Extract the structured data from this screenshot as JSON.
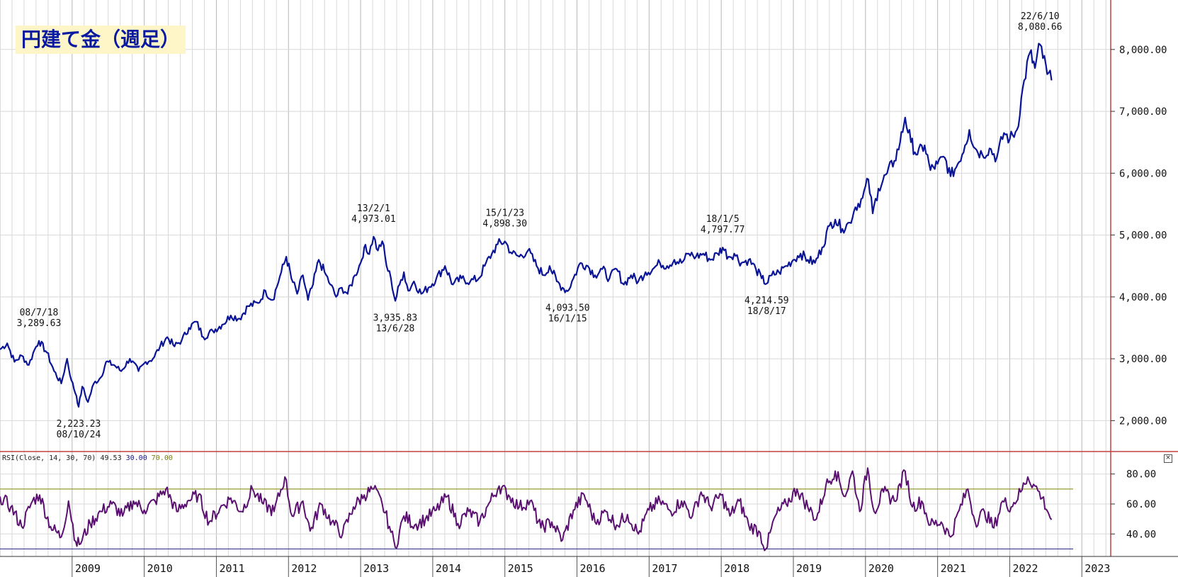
{
  "title": "円建て金（週足）",
  "colors": {
    "price_line": "#0a1496",
    "rsi_line": "#5a1070",
    "grid": "#d8d8d8",
    "separator": "#c04040",
    "rsi_upper": "#9a9a30",
    "rsi_lower": "#3a3a90"
  },
  "chart_data": [
    {
      "type": "line",
      "name": "price",
      "ylim": [
        1500,
        8800
      ],
      "yticks": [
        "2,000.00",
        "3,000.00",
        "4,000.00",
        "5,000.00",
        "6,000.00",
        "7,000.00",
        "8,000.00"
      ],
      "ytick_values": [
        2000,
        3000,
        4000,
        5000,
        6000,
        7000,
        8000
      ],
      "xlabels": [
        "2009",
        "2010",
        "2011",
        "2012",
        "2013",
        "2014",
        "2015",
        "2016",
        "2017",
        "2018",
        "2019",
        "2020",
        "2021",
        "2022",
        "2023"
      ],
      "x_start": 2008.0,
      "x_end": 2023.4,
      "grid": true,
      "anchors": [
        [
          2008.0,
          3150
        ],
        [
          2008.1,
          3250
        ],
        [
          2008.2,
          2950
        ],
        [
          2008.3,
          3050
        ],
        [
          2008.4,
          2900
        ],
        [
          2008.48,
          3150
        ],
        [
          2008.54,
          3289.63
        ],
        [
          2008.65,
          3100
        ],
        [
          2008.75,
          2800
        ],
        [
          2008.85,
          2600
        ],
        [
          2008.93,
          3000
        ],
        [
          2008.99,
          2650
        ],
        [
          2009.06,
          2400
        ],
        [
          2009.09,
          2223.23
        ],
        [
          2009.14,
          2550
        ],
        [
          2009.22,
          2300
        ],
        [
          2009.3,
          2600
        ],
        [
          2009.4,
          2700
        ],
        [
          2009.47,
          2950
        ],
        [
          2009.58,
          2900
        ],
        [
          2009.68,
          2800
        ],
        [
          2009.8,
          3000
        ],
        [
          2009.92,
          2800
        ],
        [
          2010.02,
          2950
        ],
        [
          2010.12,
          3000
        ],
        [
          2010.22,
          3200
        ],
        [
          2010.32,
          3350
        ],
        [
          2010.42,
          3200
        ],
        [
          2010.52,
          3300
        ],
        [
          2010.62,
          3500
        ],
        [
          2010.72,
          3600
        ],
        [
          2010.82,
          3350
        ],
        [
          2010.95,
          3450
        ],
        [
          2011.08,
          3550
        ],
        [
          2011.2,
          3700
        ],
        [
          2011.32,
          3650
        ],
        [
          2011.44,
          3850
        ],
        [
          2011.58,
          3900
        ],
        [
          2011.68,
          4100
        ],
        [
          2011.78,
          3950
        ],
        [
          2011.9,
          4400
        ],
        [
          2011.97,
          4650
        ],
        [
          2012.04,
          4300
        ],
        [
          2012.12,
          4050
        ],
        [
          2012.2,
          4350
        ],
        [
          2012.27,
          3950
        ],
        [
          2012.34,
          4200
        ],
        [
          2012.42,
          4600
        ],
        [
          2012.5,
          4400
        ],
        [
          2012.58,
          4200
        ],
        [
          2012.66,
          4000
        ],
        [
          2012.74,
          4150
        ],
        [
          2012.82,
          4050
        ],
        [
          2012.92,
          4350
        ],
        [
          2013.0,
          4550
        ],
        [
          2013.05,
          4800
        ],
        [
          2013.1,
          4700
        ],
        [
          2013.18,
          4973.01
        ],
        [
          2013.24,
          4750
        ],
        [
          2013.3,
          4900
        ],
        [
          2013.36,
          4500
        ],
        [
          2013.42,
          4300
        ],
        [
          2013.48,
          3935.83
        ],
        [
          2013.54,
          4200
        ],
        [
          2013.6,
          4400
        ],
        [
          2013.66,
          4100
        ],
        [
          2013.74,
          4250
        ],
        [
          2013.84,
          4050
        ],
        [
          2013.94,
          4150
        ],
        [
          2014.05,
          4300
        ],
        [
          2014.17,
          4500
        ],
        [
          2014.28,
          4200
        ],
        [
          2014.4,
          4300
        ],
        [
          2014.52,
          4250
        ],
        [
          2014.64,
          4300
        ],
        [
          2014.72,
          4500
        ],
        [
          2014.82,
          4700
        ],
        [
          2014.9,
          4850
        ],
        [
          2015.0,
          4898.3
        ],
        [
          2015.1,
          4700
        ],
        [
          2015.2,
          4650
        ],
        [
          2015.32,
          4750
        ],
        [
          2015.44,
          4500
        ],
        [
          2015.54,
          4350
        ],
        [
          2015.62,
          4500
        ],
        [
          2015.72,
          4250
        ],
        [
          2015.8,
          4150
        ],
        [
          2015.87,
          4093.5
        ],
        [
          2015.95,
          4300
        ],
        [
          2016.05,
          4550
        ],
        [
          2016.15,
          4500
        ],
        [
          2016.25,
          4350
        ],
        [
          2016.35,
          4450
        ],
        [
          2016.45,
          4300
        ],
        [
          2016.55,
          4450
        ],
        [
          2016.65,
          4200
        ],
        [
          2016.75,
          4350
        ],
        [
          2016.85,
          4250
        ],
        [
          2016.95,
          4400
        ],
        [
          2017.05,
          4450
        ],
        [
          2017.15,
          4550
        ],
        [
          2017.25,
          4500
        ],
        [
          2017.35,
          4600
        ],
        [
          2017.45,
          4550
        ],
        [
          2017.55,
          4700
        ],
        [
          2017.65,
          4650
        ],
        [
          2017.75,
          4700
        ],
        [
          2017.85,
          4600
        ],
        [
          2017.95,
          4700
        ],
        [
          2018.02,
          4797.77
        ],
        [
          2018.1,
          4650
        ],
        [
          2018.18,
          4700
        ],
        [
          2018.28,
          4550
        ],
        [
          2018.38,
          4600
        ],
        [
          2018.48,
          4450
        ],
        [
          2018.56,
          4300
        ],
        [
          2018.63,
          4214.59
        ],
        [
          2018.7,
          4350
        ],
        [
          2018.8,
          4400
        ],
        [
          2018.9,
          4500
        ],
        [
          2019.0,
          4600
        ],
        [
          2019.1,
          4700
        ],
        [
          2019.2,
          4600
        ],
        [
          2019.3,
          4550
        ],
        [
          2019.4,
          4800
        ],
        [
          2019.5,
          5150
        ],
        [
          2019.58,
          5250
        ],
        [
          2019.68,
          5100
        ],
        [
          2019.78,
          5200
        ],
        [
          2019.86,
          5450
        ],
        [
          2019.96,
          5600
        ],
        [
          2020.04,
          5900
        ],
        [
          2020.1,
          5350
        ],
        [
          2020.18,
          5750
        ],
        [
          2020.3,
          6000
        ],
        [
          2020.4,
          6200
        ],
        [
          2020.48,
          6500
        ],
        [
          2020.55,
          6900
        ],
        [
          2020.63,
          6500
        ],
        [
          2020.72,
          6300
        ],
        [
          2020.82,
          6450
        ],
        [
          2020.9,
          6050
        ],
        [
          2021.0,
          6150
        ],
        [
          2021.1,
          6250
        ],
        [
          2021.18,
          5950
        ],
        [
          2021.28,
          6150
        ],
        [
          2021.38,
          6450
        ],
        [
          2021.44,
          6700
        ],
        [
          2021.52,
          6400
        ],
        [
          2021.62,
          6300
        ],
        [
          2021.72,
          6400
        ],
        [
          2021.82,
          6250
        ],
        [
          2021.92,
          6650
        ],
        [
          2022.0,
          6550
        ],
        [
          2022.1,
          6700
        ],
        [
          2022.2,
          7500
        ],
        [
          2022.28,
          7950
        ],
        [
          2022.35,
          7700
        ],
        [
          2022.42,
          8080.66
        ],
        [
          2022.52,
          7600
        ],
        [
          2022.58,
          7500
        ]
      ],
      "annotations": [
        {
          "date": "08/7/18",
          "value": "3,289.63",
          "x": 2008.54,
          "y": 3289.63,
          "pos": "above"
        },
        {
          "date": "08/10/24",
          "value": "2,223.23",
          "x": 2009.09,
          "y": 2223.23,
          "pos": "below"
        },
        {
          "date": "13/2/1",
          "value": "4,973.01",
          "x": 2013.18,
          "y": 4973.01,
          "pos": "above"
        },
        {
          "date": "13/6/28",
          "value": "3,935.83",
          "x": 2013.48,
          "y": 3935.83,
          "pos": "below"
        },
        {
          "date": "15/1/23",
          "value": "4,898.30",
          "x": 2015.0,
          "y": 4898.3,
          "pos": "above"
        },
        {
          "date": "16/1/15",
          "value": "4,093.50",
          "x": 2015.87,
          "y": 4093.5,
          "pos": "below"
        },
        {
          "date": "18/1/5",
          "value": "4,797.77",
          "x": 2018.02,
          "y": 4797.77,
          "pos": "above"
        },
        {
          "date": "18/8/17",
          "value": "4,214.59",
          "x": 2018.63,
          "y": 4214.59,
          "pos": "below"
        },
        {
          "date": "22/6/10",
          "value": "8,080.66",
          "x": 2022.42,
          "y": 8080.66,
          "pos": "above"
        }
      ]
    },
    {
      "type": "line",
      "name": "rsi",
      "ylim": [
        25,
        95
      ],
      "yticks": [
        "40.00",
        "60.00",
        "80.00"
      ],
      "ytick_values": [
        40,
        60,
        80
      ],
      "levels": [
        30,
        70
      ],
      "label": "RSI(Close, 14, 30, 70)",
      "current": "49.53",
      "level_low": "30.00",
      "level_high": "70.00",
      "anchors": [
        [
          2008.0,
          65
        ],
        [
          2008.15,
          58
        ],
        [
          2008.3,
          45
        ],
        [
          2008.45,
          62
        ],
        [
          2008.55,
          66
        ],
        [
          2008.7,
          45
        ],
        [
          2008.85,
          38
        ],
        [
          2008.95,
          62
        ],
        [
          2009.05,
          35
        ],
        [
          2009.1,
          33
        ],
        [
          2009.25,
          47
        ],
        [
          2009.4,
          55
        ],
        [
          2009.55,
          60
        ],
        [
          2009.7,
          52
        ],
        [
          2009.85,
          62
        ],
        [
          2010.0,
          56
        ],
        [
          2010.15,
          62
        ],
        [
          2010.3,
          70
        ],
        [
          2010.45,
          55
        ],
        [
          2010.6,
          62
        ],
        [
          2010.75,
          66
        ],
        [
          2010.9,
          48
        ],
        [
          2011.05,
          57
        ],
        [
          2011.2,
          64
        ],
        [
          2011.35,
          55
        ],
        [
          2011.5,
          70
        ],
        [
          2011.65,
          60
        ],
        [
          2011.8,
          55
        ],
        [
          2011.95,
          78
        ],
        [
          2012.05,
          52
        ],
        [
          2012.2,
          62
        ],
        [
          2012.3,
          42
        ],
        [
          2012.45,
          60
        ],
        [
          2012.6,
          48
        ],
        [
          2012.75,
          40
        ],
        [
          2012.9,
          58
        ],
        [
          2013.05,
          66
        ],
        [
          2013.18,
          70
        ],
        [
          2013.3,
          60
        ],
        [
          2013.4,
          45
        ],
        [
          2013.48,
          31
        ],
        [
          2013.6,
          52
        ],
        [
          2013.75,
          46
        ],
        [
          2013.9,
          50
        ],
        [
          2014.05,
          56
        ],
        [
          2014.2,
          65
        ],
        [
          2014.35,
          47
        ],
        [
          2014.5,
          55
        ],
        [
          2014.65,
          48
        ],
        [
          2014.8,
          62
        ],
        [
          2014.92,
          72
        ],
        [
          2015.05,
          66
        ],
        [
          2015.2,
          58
        ],
        [
          2015.35,
          62
        ],
        [
          2015.5,
          44
        ],
        [
          2015.65,
          48
        ],
        [
          2015.8,
          36
        ],
        [
          2015.95,
          56
        ],
        [
          2016.1,
          66
        ],
        [
          2016.25,
          48
        ],
        [
          2016.4,
          55
        ],
        [
          2016.55,
          46
        ],
        [
          2016.7,
          53
        ],
        [
          2016.85,
          40
        ],
        [
          2017.0,
          56
        ],
        [
          2017.15,
          62
        ],
        [
          2017.3,
          55
        ],
        [
          2017.45,
          62
        ],
        [
          2017.6,
          52
        ],
        [
          2017.72,
          68
        ],
        [
          2017.85,
          58
        ],
        [
          2018.0,
          66
        ],
        [
          2018.12,
          52
        ],
        [
          2018.25,
          62
        ],
        [
          2018.38,
          46
        ],
        [
          2018.52,
          42
        ],
        [
          2018.62,
          30
        ],
        [
          2018.75,
          52
        ],
        [
          2018.9,
          60
        ],
        [
          2019.05,
          70
        ],
        [
          2019.2,
          58
        ],
        [
          2019.32,
          50
        ],
        [
          2019.45,
          72
        ],
        [
          2019.58,
          82
        ],
        [
          2019.72,
          65
        ],
        [
          2019.82,
          82
        ],
        [
          2019.92,
          55
        ],
        [
          2020.03,
          84
        ],
        [
          2020.12,
          55
        ],
        [
          2020.25,
          68
        ],
        [
          2020.4,
          62
        ],
        [
          2020.55,
          82
        ],
        [
          2020.65,
          58
        ],
        [
          2020.78,
          62
        ],
        [
          2020.9,
          46
        ],
        [
          2021.05,
          48
        ],
        [
          2021.18,
          38
        ],
        [
          2021.3,
          56
        ],
        [
          2021.42,
          70
        ],
        [
          2021.52,
          48
        ],
        [
          2021.65,
          55
        ],
        [
          2021.78,
          44
        ],
        [
          2021.9,
          62
        ],
        [
          2022.02,
          58
        ],
        [
          2022.15,
          68
        ],
        [
          2022.25,
          78
        ],
        [
          2022.35,
          72
        ],
        [
          2022.45,
          64
        ],
        [
          2022.58,
          49.53
        ]
      ]
    }
  ]
}
